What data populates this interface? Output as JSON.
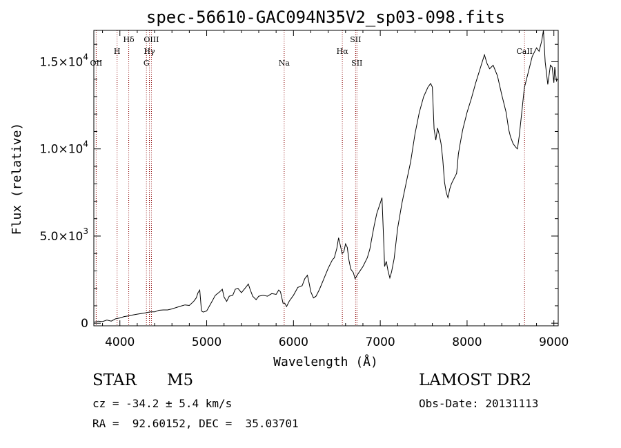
{
  "chart_data": {
    "type": "line",
    "title": "spec-56610-GAC094N35V2_sp03-098.fits",
    "xlabel": "Wavelength (Å)",
    "ylabel": "Flux (relative)",
    "xlim": [
      3700,
      9050
    ],
    "ylim": [
      -150,
      16800
    ],
    "x_ticks": [
      {
        "value": 4000,
        "label": "4000"
      },
      {
        "value": 5000,
        "label": "5000"
      },
      {
        "value": 6000,
        "label": "6000"
      },
      {
        "value": 7000,
        "label": "7000"
      },
      {
        "value": 8000,
        "label": "8000"
      },
      {
        "value": 9000,
        "label": "9000"
      }
    ],
    "y_ticks": [
      {
        "value": 0,
        "mantissa": "0",
        "exponent": ""
      },
      {
        "value": 5000,
        "mantissa": "5.0×10",
        "exponent": "3"
      },
      {
        "value": 10000,
        "mantissa": "1.0×10",
        "exponent": "4"
      },
      {
        "value": 15000,
        "mantissa": "1.5×10",
        "exponent": "4"
      }
    ],
    "grid": false,
    "line_color": "#000000",
    "line_marker_color": "#8b0000",
    "spectrum": [
      [
        3700,
        60
      ],
      [
        3750,
        120
      ],
      [
        3800,
        90
      ],
      [
        3850,
        180
      ],
      [
        3900,
        120
      ],
      [
        3950,
        250
      ],
      [
        4000,
        300
      ],
      [
        4050,
        380
      ],
      [
        4100,
        420
      ],
      [
        4150,
        470
      ],
      [
        4200,
        520
      ],
      [
        4250,
        560
      ],
      [
        4300,
        600
      ],
      [
        4350,
        650
      ],
      [
        4400,
        650
      ],
      [
        4450,
        740
      ],
      [
        4500,
        760
      ],
      [
        4550,
        760
      ],
      [
        4600,
        820
      ],
      [
        4650,
        900
      ],
      [
        4700,
        980
      ],
      [
        4750,
        1050
      ],
      [
        4800,
        1020
      ],
      [
        4850,
        1250
      ],
      [
        4880,
        1450
      ],
      [
        4900,
        1750
      ],
      [
        4920,
        1900
      ],
      [
        4940,
        700
      ],
      [
        4960,
        640
      ],
      [
        5000,
        700
      ],
      [
        5050,
        1150
      ],
      [
        5100,
        1600
      ],
      [
        5150,
        1800
      ],
      [
        5180,
        1950
      ],
      [
        5200,
        1500
      ],
      [
        5230,
        1250
      ],
      [
        5260,
        1550
      ],
      [
        5300,
        1600
      ],
      [
        5330,
        1950
      ],
      [
        5360,
        2000
      ],
      [
        5400,
        1750
      ],
      [
        5450,
        2050
      ],
      [
        5480,
        2250
      ],
      [
        5500,
        1950
      ],
      [
        5530,
        1550
      ],
      [
        5570,
        1350
      ],
      [
        5600,
        1550
      ],
      [
        5650,
        1600
      ],
      [
        5700,
        1550
      ],
      [
        5750,
        1700
      ],
      [
        5800,
        1650
      ],
      [
        5830,
        1900
      ],
      [
        5850,
        1800
      ],
      [
        5880,
        1150
      ],
      [
        5900,
        1150
      ],
      [
        5920,
        950
      ],
      [
        5950,
        1250
      ],
      [
        6000,
        1600
      ],
      [
        6050,
        2050
      ],
      [
        6100,
        2150
      ],
      [
        6130,
        2550
      ],
      [
        6160,
        2750
      ],
      [
        6180,
        2300
      ],
      [
        6200,
        1800
      ],
      [
        6230,
        1450
      ],
      [
        6260,
        1550
      ],
      [
        6300,
        1950
      ],
      [
        6350,
        2550
      ],
      [
        6400,
        3150
      ],
      [
        6450,
        3650
      ],
      [
        6470,
        3750
      ],
      [
        6500,
        4300
      ],
      [
        6520,
        4900
      ],
      [
        6540,
        4450
      ],
      [
        6560,
        4000
      ],
      [
        6580,
        4100
      ],
      [
        6600,
        4550
      ],
      [
        6620,
        4350
      ],
      [
        6640,
        3600
      ],
      [
        6660,
        3100
      ],
      [
        6690,
        2900
      ],
      [
        6710,
        2550
      ],
      [
        6740,
        2800
      ],
      [
        6760,
        2950
      ],
      [
        6800,
        3250
      ],
      [
        6850,
        3750
      ],
      [
        6880,
        4250
      ],
      [
        6900,
        4800
      ],
      [
        6930,
        5600
      ],
      [
        6960,
        6300
      ],
      [
        6990,
        6750
      ],
      [
        7020,
        7200
      ],
      [
        7040,
        4600
      ],
      [
        7050,
        3250
      ],
      [
        7070,
        3550
      ],
      [
        7090,
        3000
      ],
      [
        7110,
        2600
      ],
      [
        7130,
        2950
      ],
      [
        7160,
        3700
      ],
      [
        7200,
        5450
      ],
      [
        7250,
        6900
      ],
      [
        7300,
        8100
      ],
      [
        7350,
        9250
      ],
      [
        7400,
        10850
      ],
      [
        7450,
        12100
      ],
      [
        7500,
        13000
      ],
      [
        7550,
        13550
      ],
      [
        7580,
        13750
      ],
      [
        7600,
        13550
      ],
      [
        7620,
        11150
      ],
      [
        7640,
        10500
      ],
      [
        7660,
        11200
      ],
      [
        7680,
        10800
      ],
      [
        7700,
        10300
      ],
      [
        7720,
        9400
      ],
      [
        7740,
        8100
      ],
      [
        7760,
        7500
      ],
      [
        7780,
        7200
      ],
      [
        7800,
        7700
      ],
      [
        7820,
        8000
      ],
      [
        7850,
        8300
      ],
      [
        7880,
        8600
      ],
      [
        7900,
        9700
      ],
      [
        7920,
        10300
      ],
      [
        7950,
        11100
      ],
      [
        8000,
        12100
      ],
      [
        8050,
        12900
      ],
      [
        8100,
        13800
      ],
      [
        8150,
        14600
      ],
      [
        8200,
        15400
      ],
      [
        8230,
        14900
      ],
      [
        8260,
        14600
      ],
      [
        8300,
        14800
      ],
      [
        8350,
        14200
      ],
      [
        8400,
        13100
      ],
      [
        8450,
        12100
      ],
      [
        8480,
        11100
      ],
      [
        8500,
        10700
      ],
      [
        8530,
        10300
      ],
      [
        8560,
        10100
      ],
      [
        8580,
        10000
      ],
      [
        8600,
        10700
      ],
      [
        8630,
        12100
      ],
      [
        8660,
        13500
      ],
      [
        8700,
        14300
      ],
      [
        8750,
        15300
      ],
      [
        8800,
        15800
      ],
      [
        8830,
        15600
      ],
      [
        8860,
        16200
      ],
      [
        8880,
        16800
      ],
      [
        8900,
        15000
      ],
      [
        8930,
        13700
      ],
      [
        8960,
        14800
      ],
      [
        8980,
        14700
      ],
      [
        9000,
        13800
      ],
      [
        9010,
        14700
      ],
      [
        9030,
        13900
      ],
      [
        9040,
        14000
      ]
    ],
    "spectral_lines": [
      {
        "label": "OII",
        "wavelength": 3727,
        "label_row": 3
      },
      {
        "label": "H",
        "wavelength": 3968,
        "label_row": 2
      },
      {
        "label": "Hδ",
        "wavelength": 4102,
        "label_row": 1
      },
      {
        "label": "OIII",
        "wavelength": 4363,
        "label_row": 1
      },
      {
        "label": "Hγ",
        "wavelength": 4340,
        "label_row": 2
      },
      {
        "label": "G",
        "wavelength": 4306,
        "label_row": 3
      },
      {
        "label": "Na",
        "wavelength": 5893,
        "label_row": 3
      },
      {
        "label": "Hα",
        "wavelength": 6563,
        "label_row": 2
      },
      {
        "label": "SII",
        "wavelength": 6716,
        "label_row": 1
      },
      {
        "label": "SII",
        "wavelength": 6731,
        "label_row": 3
      },
      {
        "label": "CaII",
        "wavelength": 8662,
        "label_row": 2
      }
    ]
  },
  "info": {
    "object_class": "STAR",
    "subclass": "M5",
    "survey": "LAMOST DR2",
    "redshift_text": "cz = -34.2 ± 5.4 km/s",
    "obs_date": "Obs-Date: 20131113",
    "coordinates": "RA =  92.60152, DEC =  35.03701"
  }
}
